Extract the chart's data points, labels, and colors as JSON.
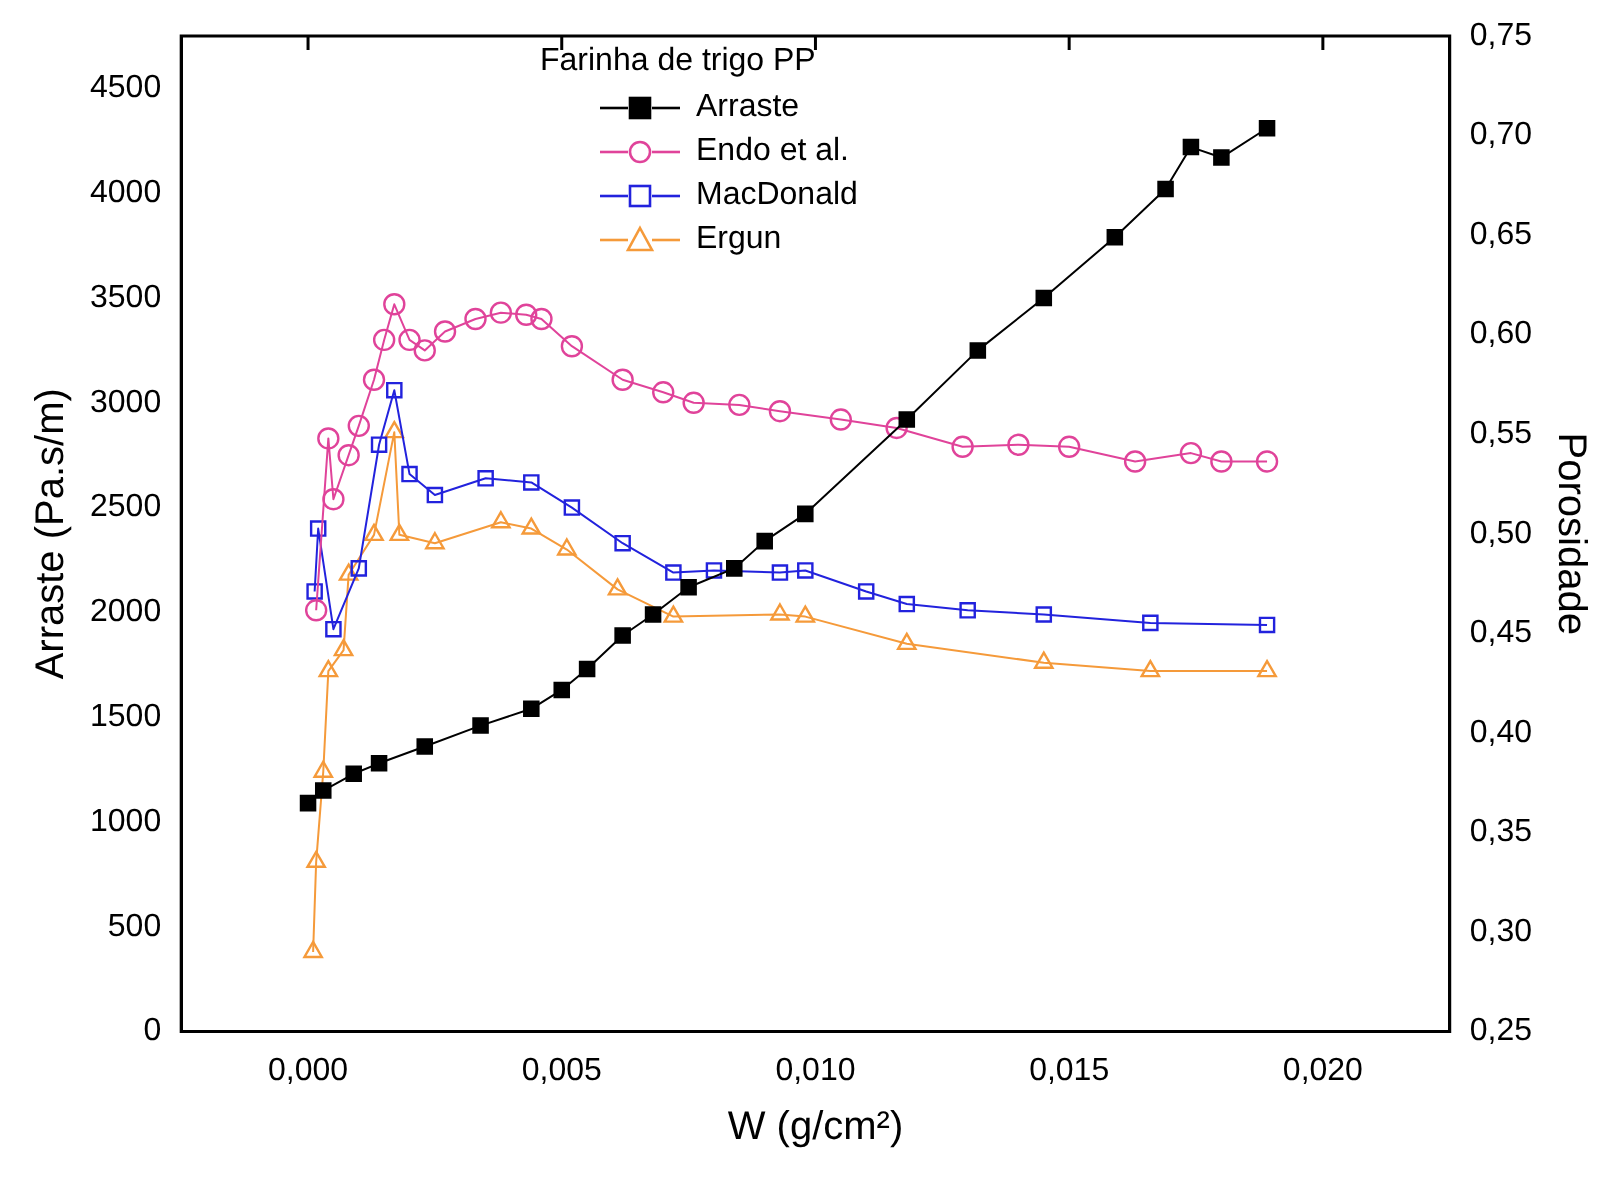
{
  "chart_data": {
    "type": "line",
    "xlabel": "W (g/cm²)",
    "ylabel": "Arraste (Pa.s/m)",
    "y2label": "Porosidade",
    "legend_title": "Farinha de trigo PP",
    "legend": "top",
    "grid": false,
    "xlim": [
      -0.0025,
      0.0225
    ],
    "xticks": [
      {
        "value": 0,
        "label": "0,000"
      },
      {
        "value": 0.005,
        "label": "0,005"
      },
      {
        "value": 0.01,
        "label": "0,010"
      },
      {
        "value": 0.015,
        "label": "0,015"
      },
      {
        "value": 0.02,
        "label": "0,020"
      }
    ],
    "ylim": [
      0,
      4750
    ],
    "yticks": [
      0,
      500,
      1000,
      1500,
      2000,
      2500,
      3000,
      3500,
      4000,
      4500
    ],
    "y2lim": [
      0.25,
      0.75
    ],
    "y2ticks": [
      {
        "value": 0.25,
        "label": "0,25"
      },
      {
        "value": 0.3,
        "label": "0,30"
      },
      {
        "value": 0.35,
        "label": "0,35"
      },
      {
        "value": 0.4,
        "label": "0,40"
      },
      {
        "value": 0.45,
        "label": "0,45"
      },
      {
        "value": 0.5,
        "label": "0,50"
      },
      {
        "value": 0.55,
        "label": "0,55"
      },
      {
        "value": 0.6,
        "label": "0,60"
      },
      {
        "value": 0.65,
        "label": "0,65"
      },
      {
        "value": 0.7,
        "label": "0,70"
      },
      {
        "value": 0.75,
        "label": "0,75"
      }
    ],
    "series": [
      {
        "name": "Arraste",
        "color": "#000000",
        "marker": "square",
        "x": [
          0,
          0.0003,
          0.0009,
          0.0014,
          0.0023,
          0.0034,
          0.0044,
          0.005,
          0.0055,
          0.0062,
          0.0068,
          0.0075,
          0.0084,
          0.009,
          0.0098,
          0.0118,
          0.0132,
          0.0145,
          0.0159,
          0.0169,
          0.0174,
          0.018,
          0.0189
        ],
        "values": [
          1090,
          1150,
          1230,
          1280,
          1360,
          1460,
          1540,
          1630,
          1730,
          1890,
          1990,
          2120,
          2210,
          2340,
          2470,
          2920,
          3250,
          3500,
          3790,
          4020,
          4220,
          4170,
          4310
        ]
      },
      {
        "name": "Endo et al.",
        "color": "#e0439a",
        "marker": "circle",
        "x": [
          0.00016,
          0.0004,
          0.0005,
          0.0008,
          0.001,
          0.0013,
          0.0015,
          0.0017,
          0.002,
          0.0023,
          0.0027,
          0.0033,
          0.0038,
          0.0043,
          0.0046,
          0.0052,
          0.0062,
          0.007,
          0.0076,
          0.0085,
          0.0093,
          0.0105,
          0.0116,
          0.0129,
          0.014,
          0.015,
          0.0163,
          0.0174,
          0.018,
          0.0189
        ],
        "values": [
          2010,
          2830,
          2540,
          2750,
          2890,
          3110,
          3300,
          3470,
          3300,
          3250,
          3340,
          3400,
          3430,
          3420,
          3400,
          3270,
          3110,
          3050,
          3000,
          2990,
          2960,
          2920,
          2880,
          2790,
          2800,
          2790,
          2720,
          2760,
          2720,
          2720
        ]
      },
      {
        "name": "MacDonald",
        "color": "#2222dd",
        "marker": "square",
        "x": [
          0.00013,
          0.0002,
          0.0005,
          0.001,
          0.0014,
          0.0017,
          0.002,
          0.0025,
          0.0035,
          0.0044,
          0.0052,
          0.0062,
          0.0072,
          0.008,
          0.0093,
          0.0098,
          0.011,
          0.0118,
          0.013,
          0.0145,
          0.0166,
          0.0189
        ],
        "values": [
          2100,
          2400,
          1920,
          2210,
          2800,
          3060,
          2660,
          2560,
          2640,
          2620,
          2500,
          2330,
          2190,
          2200,
          2190,
          2200,
          2100,
          2040,
          2010,
          1990,
          1950,
          1940
        ]
      },
      {
        "name": "Ergun",
        "color": "#f59a3a",
        "marker": "triangle",
        "x": [
          0.0001,
          0.00016,
          0.0003,
          0.0004,
          0.0007,
          0.0008,
          0.0013,
          0.0017,
          0.0018,
          0.0025,
          0.0038,
          0.0044,
          0.0051,
          0.0061,
          0.0072,
          0.0093,
          0.0098,
          0.0118,
          0.0145,
          0.0166,
          0.0189
        ],
        "values": [
          380,
          810,
          1240,
          1720,
          1820,
          2180,
          2370,
          2860,
          2370,
          2330,
          2430,
          2400,
          2300,
          2110,
          1980,
          1990,
          1980,
          1850,
          1760,
          1720,
          1720
        ]
      }
    ]
  }
}
